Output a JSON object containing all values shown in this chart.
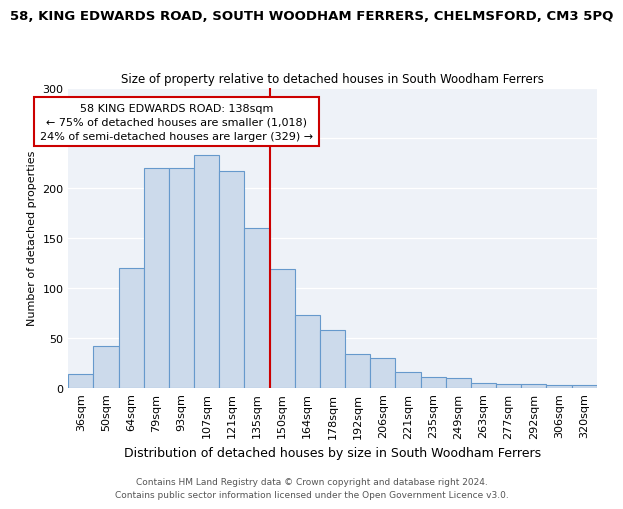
{
  "title": "58, KING EDWARDS ROAD, SOUTH WOODHAM FERRERS, CHELMSFORD, CM3 5PQ",
  "subtitle": "Size of property relative to detached houses in South Woodham Ferrers",
  "xlabel": "Distribution of detached houses by size in South Woodham Ferrers",
  "ylabel": "Number of detached properties",
  "categories": [
    "36sqm",
    "50sqm",
    "64sqm",
    "79sqm",
    "93sqm",
    "107sqm",
    "121sqm",
    "135sqm",
    "150sqm",
    "164sqm",
    "178sqm",
    "192sqm",
    "206sqm",
    "221sqm",
    "235sqm",
    "249sqm",
    "263sqm",
    "277sqm",
    "292sqm",
    "306sqm",
    "320sqm"
  ],
  "values": [
    14,
    42,
    120,
    220,
    220,
    233,
    217,
    160,
    119,
    73,
    58,
    34,
    30,
    16,
    11,
    10,
    5,
    4,
    4,
    3,
    3
  ],
  "bar_color": "#ccdaeb",
  "bar_edge_color": "#6699cc",
  "vline_color": "#cc0000",
  "annotation_title": "58 KING EDWARDS ROAD: 138sqm",
  "annotation_line1": "← 75% of detached houses are smaller (1,018)",
  "annotation_line2": "24% of semi-detached houses are larger (329) →",
  "annotation_box_color": "#cc0000",
  "ylim": [
    0,
    300
  ],
  "yticks": [
    0,
    50,
    100,
    150,
    200,
    250,
    300
  ],
  "footer1": "Contains HM Land Registry data © Crown copyright and database right 2024.",
  "footer2": "Contains public sector information licensed under the Open Government Licence v3.0.",
  "background_color": "#eef2f8",
  "title_fontsize": 9.5,
  "subtitle_fontsize": 8.5,
  "xlabel_fontsize": 9,
  "ylabel_fontsize": 8,
  "tick_fontsize": 8,
  "footer_fontsize": 6.5,
  "annot_fontsize": 8
}
